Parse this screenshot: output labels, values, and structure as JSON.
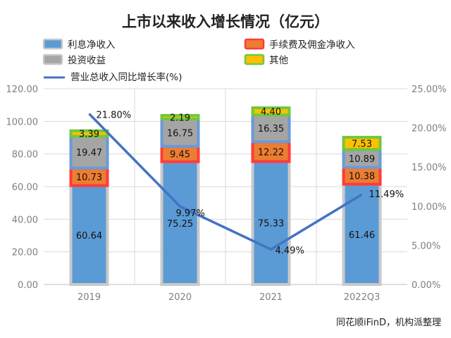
{
  "source_note": "同花顺iFinD，机构派整理",
  "chart_data": {
    "type": "bar",
    "stacked": true,
    "title": "上市以来收入增长情况（亿元）",
    "categories": [
      "2019",
      "2020",
      "2021",
      "2022Q3"
    ],
    "series": [
      {
        "name": "利息净收入",
        "values": [
          60.64,
          75.25,
          75.33,
          61.46
        ],
        "color": "#5B9BD5"
      },
      {
        "name": "手续费及佣金净收入",
        "values": [
          10.73,
          9.45,
          12.22,
          10.38
        ],
        "color": "#ED7D31"
      },
      {
        "name": "投资收益",
        "values": [
          19.47,
          16.75,
          16.35,
          10.89
        ],
        "color": "#A5A5A5"
      },
      {
        "name": "其他",
        "values": [
          3.39,
          2.19,
          4.4,
          7.53
        ],
        "color": "#FFC000"
      }
    ],
    "line_series": {
      "name": "营业总收入同比增长率(%)",
      "values": [
        21.8,
        9.97,
        4.49,
        11.49
      ],
      "labels": [
        "21.80%",
        "9.97%",
        "4.49%",
        "11.49%"
      ],
      "color": "#4472C4",
      "axis": "right"
    },
    "y_left": {
      "min": 0,
      "max": 120,
      "ticks": [
        "0.00",
        "20.00",
        "40.00",
        "60.00",
        "80.00",
        "100.00",
        "120.00"
      ]
    },
    "y_right": {
      "min": 0,
      "max": 25,
      "ticks": [
        "0.00%",
        "5.00%",
        "10.00%",
        "15.00%",
        "20.00%",
        "25.00%"
      ]
    },
    "grid": true,
    "legend_position": "top"
  }
}
